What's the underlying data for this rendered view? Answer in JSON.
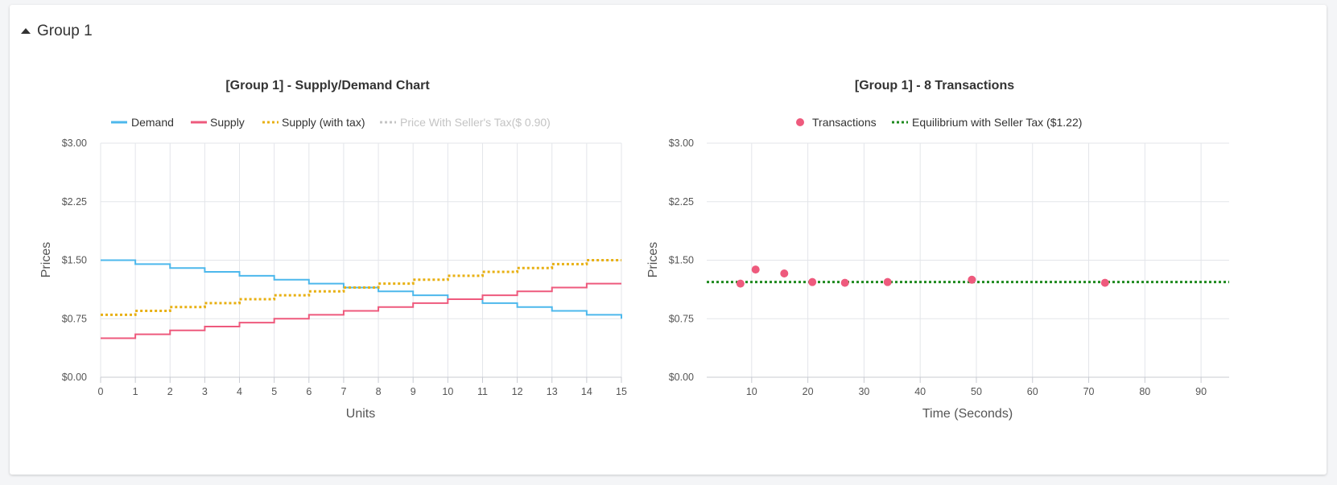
{
  "group": {
    "label": "Group 1"
  },
  "chart_data": [
    {
      "type": "line",
      "title": "[Group 1] - Supply/Demand Chart",
      "xlabel": "Units",
      "ylabel": "Prices",
      "xlim": [
        0,
        15
      ],
      "ylim": [
        0,
        3
      ],
      "x_ticks": [
        0,
        1,
        2,
        3,
        4,
        5,
        6,
        7,
        8,
        9,
        10,
        11,
        12,
        13,
        14,
        15
      ],
      "y_ticks": [
        "$0.00",
        "$0.75",
        "$1.50",
        "$2.25",
        "$3.00"
      ],
      "y_tick_values": [
        0,
        0.75,
        1.5,
        2.25,
        3
      ],
      "grid": true,
      "legend_position": "top",
      "series": [
        {
          "name": "Demand",
          "color": "#4db8ec",
          "style": "step",
          "values": [
            1.5,
            1.45,
            1.4,
            1.35,
            1.3,
            1.25,
            1.2,
            1.15,
            1.1,
            1.05,
            1.0,
            0.95,
            0.9,
            0.85,
            0.8,
            0.75
          ]
        },
        {
          "name": "Supply",
          "color": "#ee5a7d",
          "style": "step",
          "values": [
            0.5,
            0.55,
            0.6,
            0.65,
            0.7,
            0.75,
            0.8,
            0.85,
            0.9,
            0.95,
            1.0,
            1.05,
            1.1,
            1.15,
            1.2,
            1.2
          ]
        },
        {
          "name": "Supply (with tax)",
          "color": "#e8b013",
          "style": "step-dotted",
          "values": [
            0.8,
            0.85,
            0.9,
            0.95,
            1.0,
            1.05,
            1.1,
            1.15,
            1.2,
            1.25,
            1.3,
            1.35,
            1.4,
            1.45,
            1.5,
            1.5
          ]
        },
        {
          "name": "Price With Seller's Tax($ 0.90)",
          "color": "#c4c4c4",
          "style": "hidden",
          "values": []
        }
      ]
    },
    {
      "type": "scatter",
      "title": "[Group 1] - 8 Transactions",
      "xlabel": "Time (Seconds)",
      "ylabel": "Prices",
      "xlim": [
        2,
        95
      ],
      "ylim": [
        0,
        3
      ],
      "x_ticks": [
        10,
        20,
        30,
        40,
        50,
        60,
        70,
        80,
        90
      ],
      "y_ticks": [
        "$0.00",
        "$0.75",
        "$1.50",
        "$2.25",
        "$3.00"
      ],
      "y_tick_values": [
        0,
        0.75,
        1.5,
        2.25,
        3
      ],
      "grid": true,
      "legend_position": "top",
      "series": [
        {
          "name": "Transactions",
          "color": "#ee5a7d",
          "points": [
            [
              8,
              1.2
            ],
            [
              10.7,
              1.38
            ],
            [
              15.8,
              1.33
            ],
            [
              20.8,
              1.22
            ],
            [
              26.6,
              1.21
            ],
            [
              34.2,
              1.22
            ],
            [
              49.2,
              1.25
            ],
            [
              72.9,
              1.21
            ]
          ]
        },
        {
          "name": "Equilibrium with Seller Tax ($1.22)",
          "color": "#1e8a1e",
          "style": "dotted",
          "value": 1.22
        }
      ]
    }
  ]
}
